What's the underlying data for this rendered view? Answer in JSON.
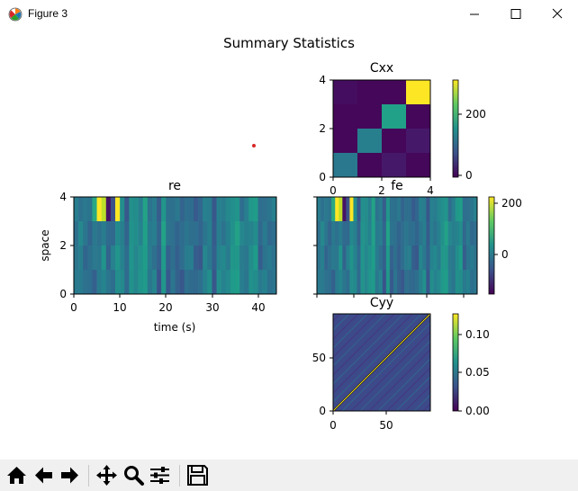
{
  "window": {
    "title": "Figure 3"
  },
  "figure": {
    "suptitle": "Summary Statistics"
  },
  "colors": {
    "viridis_dark": "#440154",
    "viridis_mid": "#21918c",
    "viridis_yellow": "#fde725",
    "marker_red": "#d62728"
  },
  "toolbar": {
    "buttons": [
      {
        "name": "home-button",
        "icon": "home-icon"
      },
      {
        "name": "back-button",
        "icon": "left-arrow-icon"
      },
      {
        "name": "forward-button",
        "icon": "right-arrow-icon"
      },
      {
        "name": "pan-button",
        "icon": "move-icon"
      },
      {
        "name": "zoom-button",
        "icon": "magnifier-icon"
      },
      {
        "name": "configure-subplots-button",
        "icon": "sliders-icon"
      },
      {
        "name": "save-button",
        "icon": "floppy-disk-icon"
      }
    ]
  },
  "chart_data": [
    {
      "type": "scatter",
      "title": "",
      "points": [
        {
          "x": 0,
          "y": 0,
          "color": "#d62728"
        }
      ],
      "axes_visible": false
    },
    {
      "type": "heatmap",
      "title": "Cxx",
      "xlabel": "",
      "ylabel": "",
      "xlim": [
        0,
        4
      ],
      "ylim": [
        0,
        4
      ],
      "xticks": [
        "0",
        "2",
        "4"
      ],
      "yticks": [
        "0",
        "2",
        "4"
      ],
      "matrix": [
        [
          10,
          5,
          5,
          300
        ],
        [
          5,
          5,
          170,
          5
        ],
        [
          5,
          130,
          5,
          20
        ],
        [
          120,
          5,
          20,
          5
        ]
      ],
      "colorbar": {
        "ticks": [
          "0",
          "200"
        ],
        "range": [
          0,
          300
        ]
      }
    },
    {
      "type": "heatmap",
      "title": "re",
      "xlabel": "time (s)",
      "ylabel": "space",
      "xlim": [
        0,
        44
      ],
      "ylim": [
        0,
        4
      ],
      "xticks": [
        "0",
        "10",
        "20",
        "30",
        "40"
      ],
      "yticks": [
        "0",
        "2",
        "4"
      ],
      "rows": 4,
      "cols": 44
    },
    {
      "type": "heatmap",
      "title": "fe",
      "xlabel": "",
      "ylabel": "",
      "rows": 4,
      "cols": 44,
      "colorbar": {
        "ticks": [
          "0",
          "200"
        ],
        "range": [
          -130,
          230
        ]
      }
    },
    {
      "type": "heatmap",
      "title": "Cyy",
      "xlabel": "",
      "ylabel": "",
      "xlim": [
        0,
        88
      ],
      "ylim": [
        0,
        88
      ],
      "xticks": [
        "0",
        "50"
      ],
      "yticks": [
        "0",
        "50"
      ],
      "colorbar": {
        "ticks": [
          "0.00",
          "0.05",
          "0.10"
        ],
        "range": [
          0,
          0.125
        ]
      }
    }
  ]
}
